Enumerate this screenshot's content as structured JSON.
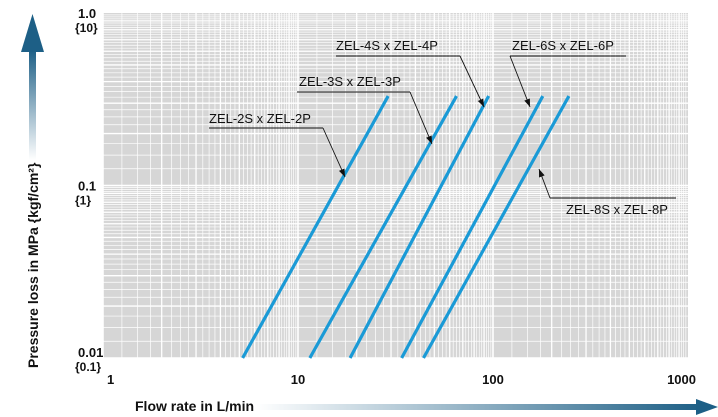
{
  "chart_data": {
    "type": "line",
    "x_scale": "log",
    "y_scale": "log",
    "xlim": [
      1,
      1000
    ],
    "ylim": [
      0.01,
      1.0
    ],
    "grid": true,
    "xlabel": "Flow rate in L/min",
    "ylabel": "Pressure loss in MPa {kgf/cm²}",
    "x_ticks": [
      {
        "value": 1,
        "label": "1"
      },
      {
        "value": 10,
        "label": "10"
      },
      {
        "value": 100,
        "label": "100"
      },
      {
        "value": 1000,
        "label": "1000"
      }
    ],
    "y_ticks": [
      {
        "value": 1.0,
        "label": "1.0",
        "sublabel": "{10}"
      },
      {
        "value": 0.1,
        "label": "0.1",
        "sublabel": "{1}"
      },
      {
        "value": 0.01,
        "label": "0.01",
        "sublabel": "{0.1}"
      }
    ],
    "series_color": "#1a9ad6",
    "axis_arrow_color": "#1d5f86",
    "series": [
      {
        "name": "ZEL-2S x ZEL-2P",
        "x": [
          5.2,
          29
        ],
        "y": [
          0.01,
          0.33
        ]
      },
      {
        "name": "ZEL-3S x ZEL-3P",
        "x": [
          11.5,
          65
        ],
        "y": [
          0.01,
          0.33
        ]
      },
      {
        "name": "ZEL-4S x ZEL-4P",
        "x": [
          18.5,
          95
        ],
        "y": [
          0.01,
          0.33
        ]
      },
      {
        "name": "ZEL-6S x ZEL-6P",
        "x": [
          34,
          180
        ],
        "y": [
          0.01,
          0.33
        ]
      },
      {
        "name": "ZEL-8S x ZEL-8P",
        "x": [
          44,
          245
        ],
        "y": [
          0.01,
          0.33
        ]
      }
    ]
  }
}
